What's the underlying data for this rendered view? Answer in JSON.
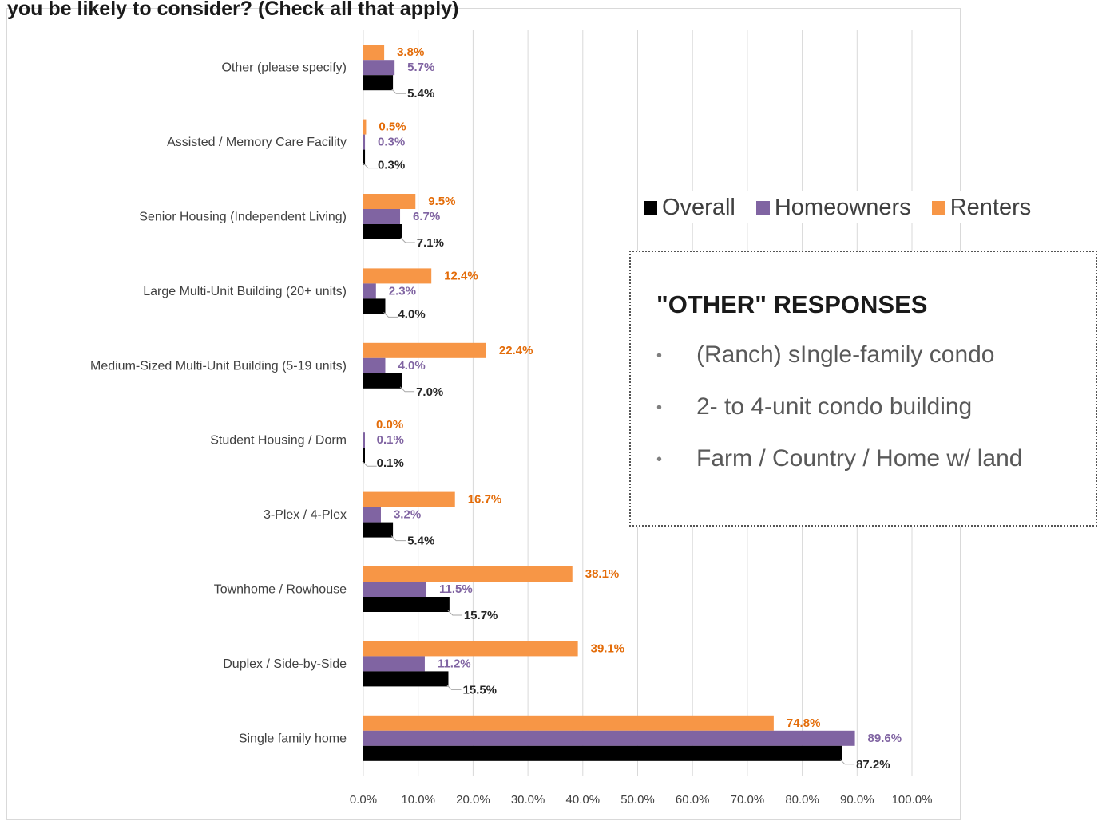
{
  "title": "you be likely to consider? (Check all that apply)",
  "chart_data": {
    "type": "bar",
    "orientation": "horizontal",
    "categories": [
      "Other (please specify)",
      "Assisted / Memory Care Facility",
      "Senior Housing (Independent Living)",
      "Large Multi-Unit Building (20+ units)",
      "Medium-Sized Multi-Unit Building (5-19 units)",
      "Student Housing / Dorm",
      "3-Plex / 4-Plex",
      "Townhome / Rowhouse",
      "Duplex / Side-by-Side",
      "Single family home"
    ],
    "series": [
      {
        "name": "Renters",
        "color": "#f79646",
        "values": [
          3.8,
          0.5,
          9.5,
          12.4,
          22.4,
          0.0,
          16.7,
          38.1,
          39.1,
          74.8
        ],
        "labels": [
          "3.8%",
          "0.5%",
          "9.5%",
          "12.4%",
          "22.4%",
          "0.0%",
          "16.7%",
          "38.1%",
          "39.1%",
          "74.8%"
        ]
      },
      {
        "name": "Homeowners",
        "color": "#8064a2",
        "values": [
          5.7,
          0.3,
          6.7,
          2.3,
          4.0,
          0.1,
          3.2,
          11.5,
          11.2,
          89.6
        ],
        "labels": [
          "5.7%",
          "0.3%",
          "6.7%",
          "2.3%",
          "4.0%",
          "0.1%",
          "3.2%",
          "11.5%",
          "11.2%",
          "89.6%"
        ]
      },
      {
        "name": "Overall",
        "color": "#000000",
        "values": [
          5.4,
          0.3,
          7.1,
          4.0,
          7.0,
          0.1,
          5.4,
          15.7,
          15.5,
          87.2
        ],
        "labels": [
          "5.4%",
          "0.3%",
          "7.1%",
          "4.0%",
          "7.0%",
          "0.1%",
          "5.4%",
          "15.7%",
          "15.5%",
          "87.2%"
        ]
      }
    ],
    "xlim": [
      0,
      100
    ],
    "xticks": [
      "0.0%",
      "10.0%",
      "20.0%",
      "30.0%",
      "40.0%",
      "50.0%",
      "60.0%",
      "70.0%",
      "80.0%",
      "90.0%",
      "100.0%"
    ],
    "grid": true,
    "legend": {
      "placement": "right",
      "entries": [
        {
          "name": "Overall",
          "color": "#000000"
        },
        {
          "name": "Homeowners",
          "color": "#8064a2"
        },
        {
          "name": "Renters",
          "color": "#f79646"
        }
      ]
    },
    "label_colors": {
      "Renters": "#e36c09",
      "Homeowners": "#8064a2",
      "Overall": "#262626"
    }
  },
  "other_box": {
    "title": "\"OTHER\" RESPONSES",
    "bullet": "•",
    "items": [
      "(Ranch) sIngle-family condo",
      "2- to 4-unit condo building",
      "Farm / Country / Home w/ land"
    ]
  }
}
